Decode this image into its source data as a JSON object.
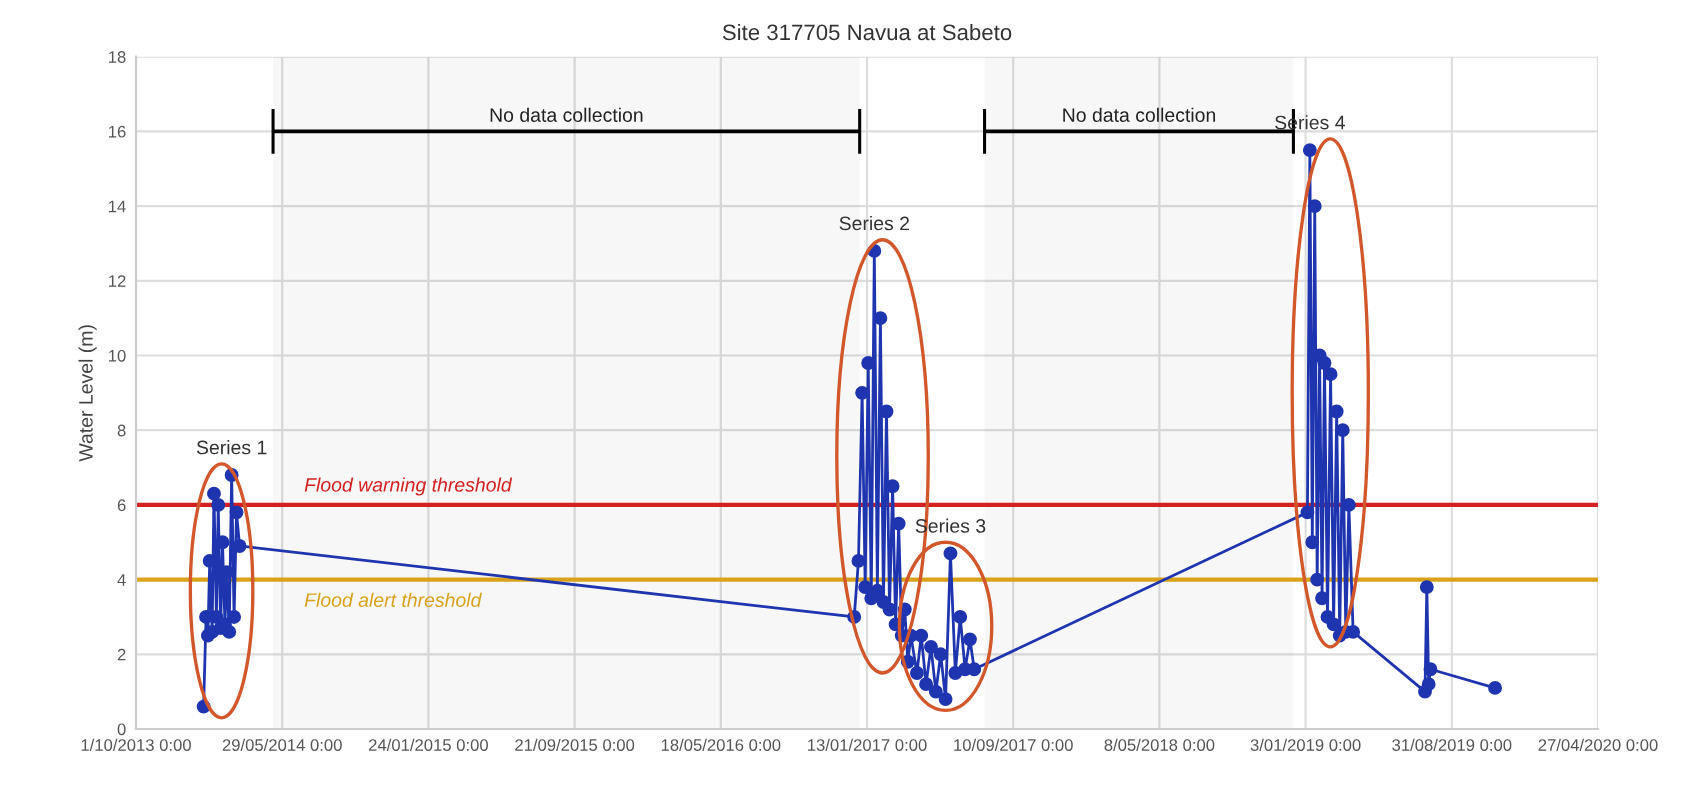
{
  "chart_data": {
    "type": "line",
    "title": "Site 317705 Navua at Sabeto",
    "ylabel": "Water Level (m)",
    "series": [
      {
        "color": "#1f35b0",
        "x": [
          "2014-01-20",
          "2014-01-24",
          "2014-01-27",
          "2014-01-30",
          "2014-02-03",
          "2014-02-06",
          "2014-02-10",
          "2014-02-13",
          "2014-02-17",
          "2014-02-20",
          "2014-02-24",
          "2014-02-27",
          "2014-03-03",
          "2014-03-07",
          "2014-03-11",
          "2014-03-15",
          "2014-03-20",
          "2016-12-23",
          "2016-12-30",
          "2017-01-05",
          "2017-01-10",
          "2017-01-15",
          "2017-01-20",
          "2017-01-25",
          "2017-01-30",
          "2017-02-04",
          "2017-02-09",
          "2017-02-14",
          "2017-02-19",
          "2017-02-24",
          "2017-03-01",
          "2017-03-06",
          "2017-03-11",
          "2017-03-16",
          "2017-03-21",
          "2017-03-26",
          "2017-04-05",
          "2017-04-12",
          "2017-04-20",
          "2017-04-28",
          "2017-05-06",
          "2017-05-14",
          "2017-05-22",
          "2017-05-30",
          "2017-06-07",
          "2017-06-15",
          "2017-06-23",
          "2017-07-01",
          "2017-07-08",
          "2019-01-06",
          "2019-01-10",
          "2019-01-14",
          "2019-01-18",
          "2019-01-22",
          "2019-01-26",
          "2019-01-30",
          "2019-02-03",
          "2019-02-08",
          "2019-02-13",
          "2019-02-18",
          "2019-02-23",
          "2019-02-28",
          "2019-03-05",
          "2019-03-10",
          "2019-03-15",
          "2019-03-22",
          "2019-07-18",
          "2019-07-21",
          "2019-07-24",
          "2019-07-27",
          "2019-11-10"
        ],
        "values": [
          0.6,
          3.0,
          2.5,
          4.5,
          2.6,
          6.3,
          3.0,
          6.0,
          2.7,
          5.0,
          2.8,
          4.2,
          2.6,
          6.8,
          3.0,
          5.8,
          4.9,
          3.0,
          4.5,
          9.0,
          3.8,
          9.8,
          3.5,
          12.8,
          3.7,
          11.0,
          3.4,
          8.5,
          3.2,
          6.5,
          2.8,
          5.5,
          2.5,
          3.2,
          1.8,
          2.5,
          1.5,
          2.5,
          1.2,
          2.2,
          1.0,
          2.0,
          0.8,
          4.7,
          1.5,
          3.0,
          1.6,
          2.4,
          1.6,
          5.8,
          15.5,
          5.0,
          14.0,
          4.0,
          10.0,
          3.5,
          9.8,
          3.0,
          9.5,
          2.8,
          8.5,
          2.5,
          8.0,
          2.6,
          6.0,
          2.6,
          1.0,
          3.8,
          1.2,
          1.6,
          1.1
        ]
      }
    ],
    "marker": "circle",
    "line_style": "solid",
    "grid": true,
    "xlim": [
      "2013-10-01",
      "2020-04-27"
    ],
    "xticks": [
      {
        "value": "2013-10-01",
        "label": "1/10/2013 0:00"
      },
      {
        "value": "2014-05-29",
        "label": "29/05/2014 0:00"
      },
      {
        "value": "2015-01-24",
        "label": "24/01/2015 0:00"
      },
      {
        "value": "2015-09-21",
        "label": "21/09/2015 0:00"
      },
      {
        "value": "2016-05-18",
        "label": "18/05/2016 0:00"
      },
      {
        "value": "2017-01-13",
        "label": "13/01/2017 0:00"
      },
      {
        "value": "2017-09-10",
        "label": "10/09/2017 0:00"
      },
      {
        "value": "2018-05-08",
        "label": "8/05/2018 0:00"
      },
      {
        "value": "2019-01-03",
        "label": "3/01/2019 0:00"
      },
      {
        "value": "2019-08-31",
        "label": "31/08/2019 0:00"
      },
      {
        "value": "2020-04-27",
        "label": "27/04/2020 0:00"
      }
    ],
    "ylim": [
      0,
      18
    ],
    "yticks": [
      0,
      2,
      4,
      6,
      8,
      10,
      12,
      14,
      16,
      18
    ],
    "ref_lines": [
      {
        "axis": "y",
        "value": 6,
        "label": "Flood warning threshold",
        "color": "#d42020"
      },
      {
        "axis": "y",
        "value": 4,
        "label": "Flood alert threshold",
        "color": "#d9a21a"
      }
    ],
    "bands": [
      {
        "axis": "x",
        "from": "2014-05-14",
        "to": "2017-01-01",
        "label": "No data collection",
        "color": "#000000"
      },
      {
        "axis": "x",
        "from": "2017-07-25",
        "to": "2018-12-14",
        "label": "No data collection",
        "color": "#000000"
      }
    ],
    "annotations": [
      {
        "text": "Series 1",
        "x": "2014-03-07",
        "y": 6.8
      },
      {
        "text": "Series 2",
        "x": "2017-01-25",
        "y": 12.8
      },
      {
        "text": "Series 3",
        "x": "2017-05-30",
        "y": 4.7
      },
      {
        "text": "Series 4",
        "x": "2019-01-10",
        "y": 15.5
      }
    ]
  }
}
